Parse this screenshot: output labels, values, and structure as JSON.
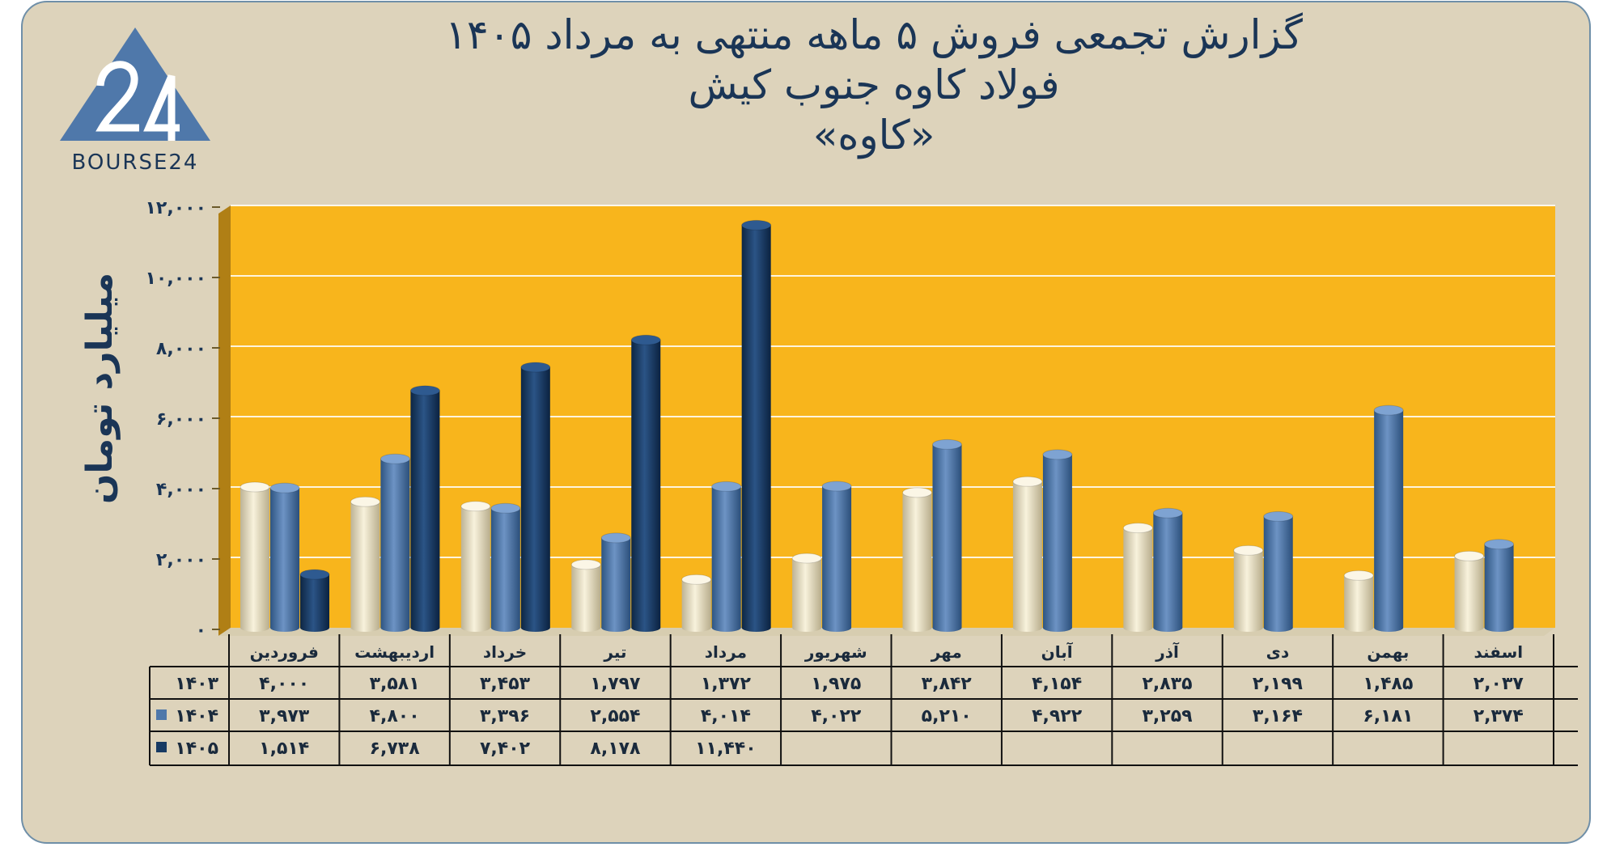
{
  "header": {
    "title_line1": "گزارش تجمعی فروش ۵ ماهه منتهی به مرداد ۱۴۰۵",
    "title_line2": "فولاد کاوه جنوب کیش",
    "title_line3": "«کاوه»"
  },
  "logo": {
    "mark_icon": "bourse24-triangle-logo",
    "text": "BOURSE24"
  },
  "chart_data": {
    "type": "bar",
    "ylabel": "میلیارد تومان",
    "ylim": [
      0,
      12000
    ],
    "yticks": [
      0,
      2000,
      4000,
      6000,
      8000,
      10000,
      12000
    ],
    "ytick_labels": [
      "۰",
      "۲,۰۰۰",
      "۴,۰۰۰",
      "۶,۰۰۰",
      "۸,۰۰۰",
      "۱۰,۰۰۰",
      "۱۲,۰۰۰"
    ],
    "categories": [
      "فروردین",
      "اردیبهشت",
      "خرداد",
      "تیر",
      "مرداد",
      "شهریور",
      "مهر",
      "آبان",
      "آذر",
      "دی",
      "بهمن",
      "اسفند"
    ],
    "series": [
      {
        "name": "۱۴۰۳",
        "color": "#e8dfc0",
        "values": [
          4000,
          3581,
          3453,
          1797,
          1372,
          1975,
          3842,
          4154,
          2835,
          2199,
          1485,
          2037
        ],
        "labels": [
          "۴,۰۰۰",
          "۳,۵۸۱",
          "۳,۴۵۳",
          "۱,۷۹۷",
          "۱,۳۷۲",
          "۱,۹۷۵",
          "۳,۸۴۲",
          "۴,۱۵۴",
          "۲,۸۳۵",
          "۲,۱۹۹",
          "۱,۴۸۵",
          "۲,۰۳۷"
        ]
      },
      {
        "name": "۱۴۰۴",
        "color": "#4f78aa",
        "values": [
          3973,
          4800,
          3396,
          2554,
          4014,
          4022,
          5210,
          4922,
          3259,
          3164,
          6181,
          2374
        ],
        "labels": [
          "۳,۹۷۳",
          "۴,۸۰۰",
          "۳,۳۹۶",
          "۲,۵۵۴",
          "۴,۰۱۴",
          "۴,۰۲۲",
          "۵,۲۱۰",
          "۴,۹۲۲",
          "۳,۲۵۹",
          "۳,۱۶۴",
          "۶,۱۸۱",
          "۲,۳۷۴"
        ]
      },
      {
        "name": "۱۴۰۵",
        "color": "#173a63",
        "values": [
          1514,
          6738,
          7402,
          8178,
          11440,
          null,
          null,
          null,
          null,
          null,
          null,
          null
        ],
        "labels": [
          "۱,۵۱۴",
          "۶,۷۳۸",
          "۷,۴۰۲",
          "۸,۱۷۸",
          "۱۱,۴۴۰",
          "",
          "",
          "",
          "",
          "",
          "",
          ""
        ]
      }
    ],
    "plot_background": "#f8b51c",
    "grid": true,
    "legend": "data-table"
  }
}
